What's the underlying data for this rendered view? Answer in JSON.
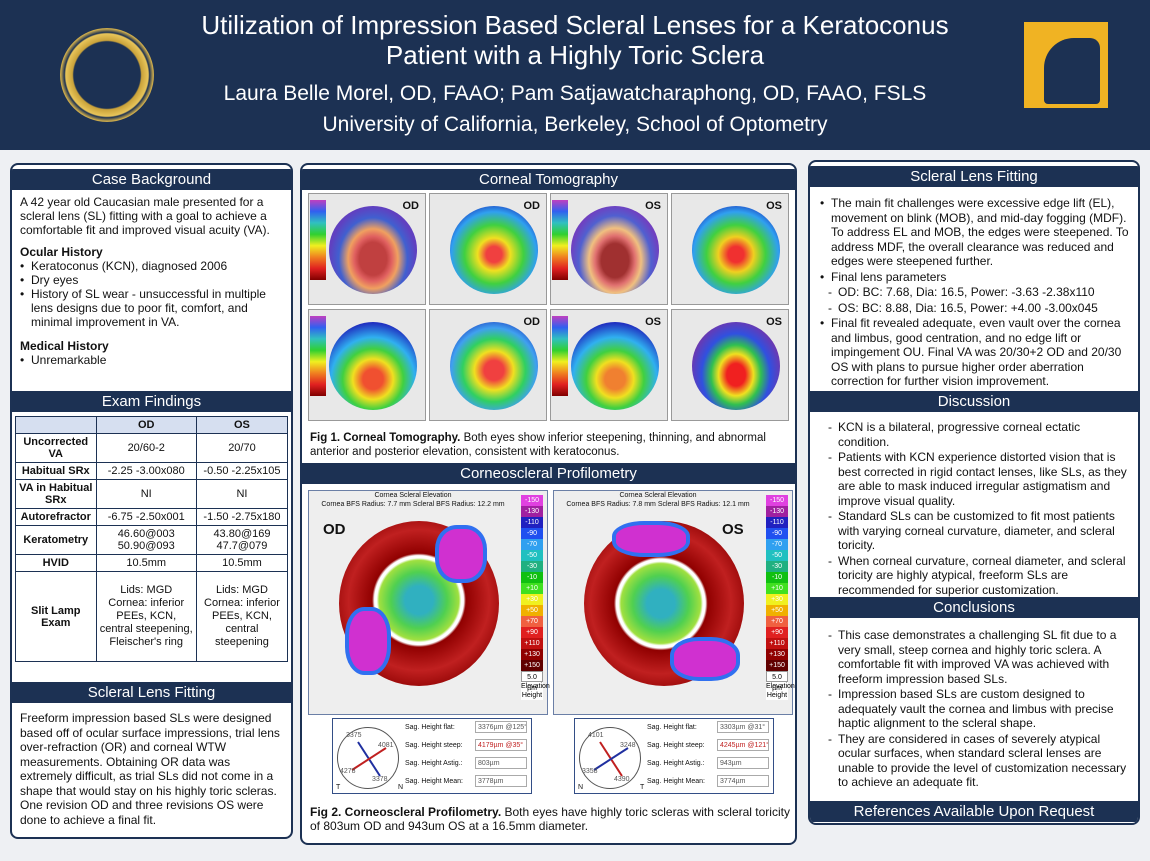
{
  "header": {
    "title": "Utilization of Impression Based Scleral Lenses for a Keratoconus Patient with a Highly Toric Sclera",
    "authors": "Laura Belle Morel, OD, FAAO; Pam Satjawatcharaphong, OD, FAAO, FSLS",
    "affiliation": "University of California, Berkeley, School of Optometry"
  },
  "case_background": {
    "title": "Case Background",
    "intro": "A 42 year old Caucasian male presented for a scleral lens (SL) fitting with a goal to achieve a comfortable fit and improved visual acuity (VA).",
    "ocular_heading": "Ocular History",
    "ocular": [
      "Keratoconus (KCN), diagnosed 2006",
      "Dry eyes",
      "History of SL wear - unsuccessful in multiple lens designs due to poor fit, comfort, and minimal improvement in VA."
    ],
    "medical_heading": "Medical History",
    "medical": [
      "Unremarkable"
    ]
  },
  "exam": {
    "title": "Exam Findings",
    "columns": [
      "",
      "OD",
      "OS"
    ],
    "rows": [
      [
        "Uncorrected VA",
        "20/60-2",
        "20/70"
      ],
      [
        "Habitual SRx",
        "-2.25 -3.00x080",
        "-0.50 -2.25x105"
      ],
      [
        "VA in Habitual SRx",
        "NI",
        "NI"
      ],
      [
        "Autorefractor",
        "-6.75 -2.50x001",
        "-1.50 -2.75x180"
      ],
      [
        "Keratometry",
        "46.60@003 50.90@093",
        "43.80@169 47.7@079"
      ],
      [
        "HVID",
        "10.5mm",
        "10.5mm"
      ],
      [
        "Slit Lamp Exam",
        "Lids: MGD Cornea: inferior PEEs, KCN, central steepening, Fleischer's ring",
        "Lids: MGD Cornea: inferior PEEs, KCN, central steepening"
      ]
    ]
  },
  "left_fitting": {
    "title": "Scleral Lens Fitting",
    "text": "Freeform impression based SLs were designed based off of ocular surface impressions, trial lens over-refraction (OR) and corneal WTW measurements. Obtaining OR data was extremely difficult, as trial SLs did not come in a shape that would stay on his highly toric scleras. One revision OD and three revisions OS were done to achieve a final fit."
  },
  "tomography": {
    "title": "Corneal Tomography",
    "eyes": [
      "OD",
      "OD",
      "OS",
      "OS",
      "",
      "OD",
      "OS",
      "OS"
    ],
    "caption_bold": "Fig 1. Corneal Tomography.",
    "caption": " Both eyes show inferior steepening, thinning, and abnormal anterior and posterior elevation, consistent with keratoconus."
  },
  "profilometry": {
    "title": "Corneoscleral Profilometry",
    "map_title": "Cornea Scleral Elevation",
    "od": {
      "eye": "OD",
      "cornea_bfs": "Cornea BFS Radius: 7.7 mm",
      "scleral_bfs": "Scleral BFS Radius: 12.2 mm",
      "sag": {
        "flat": "3376µm @125°",
        "steep": "4179µm @35°",
        "astig": "803µm",
        "mean": "3778µm"
      },
      "dial": [
        "3375",
        "4081",
        "4278",
        "3378"
      ],
      "dial_sides": [
        "T",
        "N"
      ]
    },
    "os": {
      "eye": "OS",
      "cornea_bfs": "Cornea BFS Radius: 7.8 mm",
      "scleral_bfs": "Scleral BFS Radius: 12.1 mm",
      "sag": {
        "flat": "3303µm @31°",
        "steep": "4245µm @121°",
        "astig": "943µm",
        "mean": "3774µm"
      },
      "dial": [
        "4101",
        "3248",
        "3358",
        "4390"
      ],
      "dial_sides": [
        "N",
        "T"
      ]
    },
    "sag_labels": {
      "flat": "Sag. Height flat:",
      "steep": "Sag. Height steep:",
      "astig": "Sag. Height Astig.:",
      "mean": "Sag. Height Mean:"
    },
    "scale": [
      "-150",
      "-130",
      "-110",
      "-90",
      "-70",
      "-50",
      "-30",
      "-10",
      "+10",
      "+30",
      "+50",
      "+70",
      "+90",
      "+110",
      "+130",
      "+150"
    ],
    "scale_colors": [
      "#e040e0",
      "#a020a0",
      "#2020c0",
      "#2050f0",
      "#30a0f0",
      "#20c0c0",
      "#20b080",
      "#10c010",
      "#40e020",
      "#f0f020",
      "#f0b000",
      "#f06040",
      "#e02020",
      "#c01010",
      "#900000",
      "#600000"
    ],
    "scale_unit": "5.0 µm",
    "scale_label": "Elevation Height",
    "caption_bold": "Fig 2.  Corneoscleral Profilometry.",
    "caption": " Both eyes have highly toric scleras with scleral toricity of 803um OD and 943um OS at a 16.5mm diameter."
  },
  "right_fitting": {
    "title": "Scleral Lens Fitting",
    "items": [
      {
        "text": "The main fit challenges were excessive edge lift (EL), movement on blink (MOB), and mid-day fogging (MDF). To address EL and MOB, the edges were steepened. To address MDF, the overall clearance was reduced and edges were steepened further."
      },
      {
        "text": "Final lens parameters"
      },
      {
        "text": "OD: BC: 7.68, Dia: 16.5, Power: -3.63 -2.38x110",
        "sub": true
      },
      {
        "text": "OS: BC: 8.88, Dia: 16.5, Power: +4.00 -3.00x045",
        "sub": true
      },
      {
        "text": "Final fit revealed adequate, even vault over the cornea and limbus, good centration, and no edge lift or impingement OU. Final VA was 20/30+2 OD and 20/30 OS with plans to pursue higher order aberration correction for further vision improvement."
      }
    ]
  },
  "discussion": {
    "title": "Discussion",
    "items": [
      "KCN is a bilateral, progressive corneal ectatic condition.",
      "Patients with KCN experience distorted vision that is best corrected in rigid contact lenses, like SLs, as they are able to mask induced irregular astigmatism and improve visual quality.",
      "Standard SLs can be customized to fit most patients with varying corneal curvature, diameter, and scleral toricity.",
      "When corneal curvature, corneal diameter, and scleral toricity are highly atypical, freeform SLs are recommended for superior customization."
    ]
  },
  "conclusions": {
    "title": "Conclusions",
    "items": [
      "This case demonstrates a challenging SL fit due to a very small, steep cornea and highly toric sclera. A comfortable fit with improved VA was achieved with freeform impression based SLs.",
      "Impression based SLs are custom designed to adequately vault the cornea and limbus with precise haptic alignment to the scleral shape.",
      "They are considered in cases of severely atypical ocular surfaces, when standard scleral lenses are unable to provide the level of customization necessary to achieve an adequate fit."
    ]
  },
  "references": {
    "title": "References Available Upon Request"
  },
  "colors": {
    "navy": "#1c3153",
    "gold": "#f0b323"
  }
}
